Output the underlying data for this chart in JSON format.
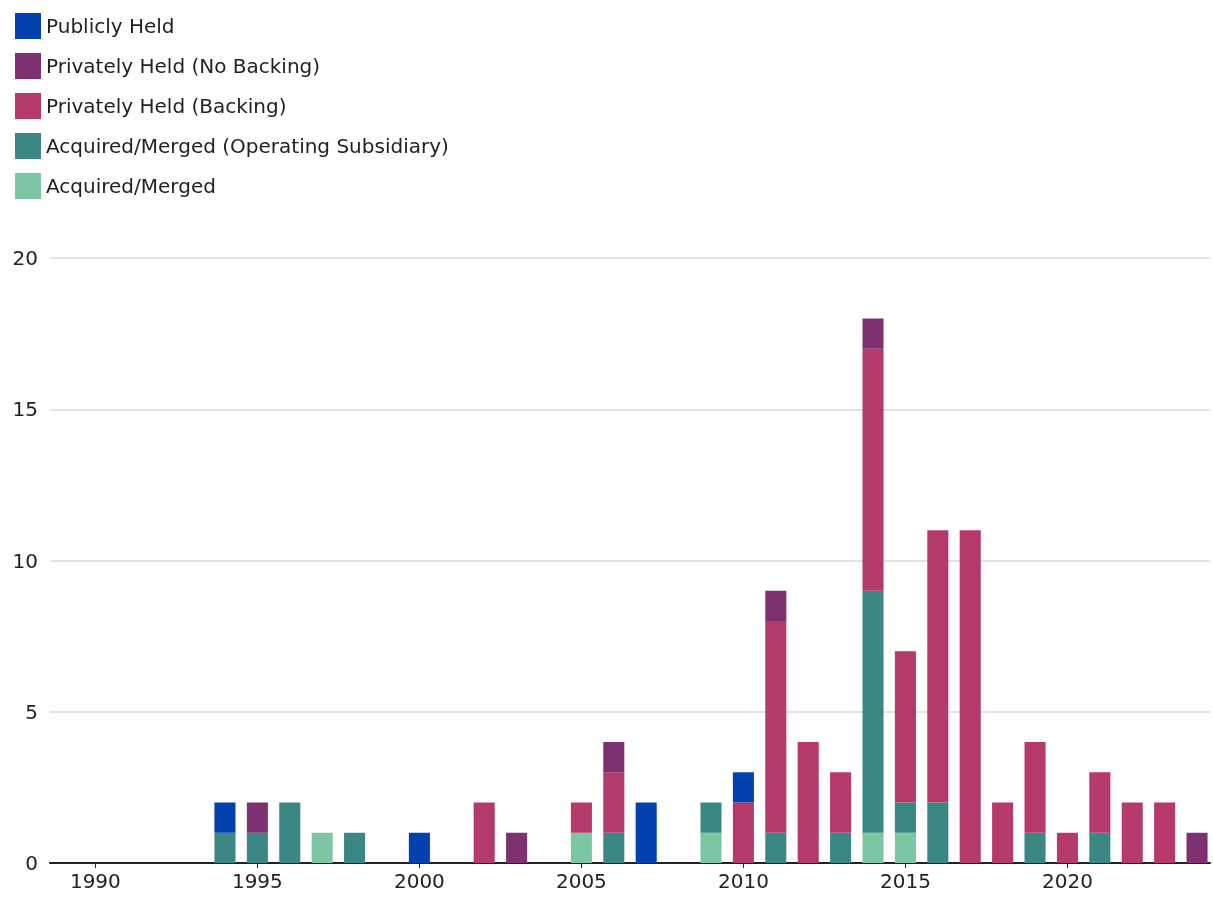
{
  "chart_data": {
    "type": "bar",
    "stacked": true,
    "legend": "top left",
    "grid": "y",
    "x": [
      1994,
      1995,
      1996,
      1997,
      1998,
      2000,
      2002,
      2003,
      2005,
      2006,
      2007,
      2009,
      2010,
      2011,
      2012,
      2013,
      2014,
      2015,
      2016,
      2017,
      2018,
      2019,
      2020,
      2021,
      2022,
      2023,
      2024
    ],
    "xlim": [
      1988.6,
      2024.4
    ],
    "xticks": [
      1990,
      1995,
      2000,
      2005,
      2010,
      2015,
      2020
    ],
    "ylim": [
      0,
      20
    ],
    "yticks": [
      0,
      5,
      10,
      15,
      20
    ],
    "series": [
      {
        "name": "Acquired/Merged",
        "color": "#7cc6a3",
        "values": [
          null,
          null,
          null,
          1,
          null,
          null,
          null,
          null,
          1,
          null,
          null,
          1,
          null,
          null,
          null,
          null,
          1,
          1,
          null,
          null,
          null,
          null,
          null,
          null,
          null,
          null,
          null
        ]
      },
      {
        "name": "Acquired/Merged (Operating Subsidiary)",
        "color": "#3a8783",
        "values": [
          1,
          1,
          2,
          null,
          1,
          null,
          null,
          null,
          null,
          1,
          null,
          1,
          null,
          1,
          null,
          1,
          8,
          1,
          2,
          null,
          null,
          1,
          null,
          1,
          null,
          null,
          null
        ]
      },
      {
        "name": "Privately Held (Backing)",
        "color": "#b5396b",
        "values": [
          null,
          null,
          null,
          null,
          null,
          null,
          2,
          null,
          1,
          2,
          null,
          null,
          2,
          7,
          4,
          2,
          8,
          5,
          9,
          11,
          2,
          3,
          1,
          2,
          2,
          2,
          null
        ]
      },
      {
        "name": "Privately Held (No Backing)",
        "color": "#7d3170",
        "values": [
          null,
          1,
          null,
          null,
          null,
          null,
          null,
          1,
          null,
          1,
          null,
          null,
          null,
          1,
          null,
          null,
          1,
          null,
          null,
          null,
          null,
          null,
          null,
          null,
          null,
          null,
          1
        ]
      },
      {
        "name": "Publicly Held",
        "color": "#0341ae",
        "values": [
          1,
          null,
          null,
          null,
          null,
          1,
          null,
          null,
          null,
          null,
          2,
          null,
          1,
          null,
          null,
          null,
          null,
          null,
          null,
          null,
          null,
          null,
          null,
          null,
          null,
          null,
          null
        ]
      }
    ]
  }
}
